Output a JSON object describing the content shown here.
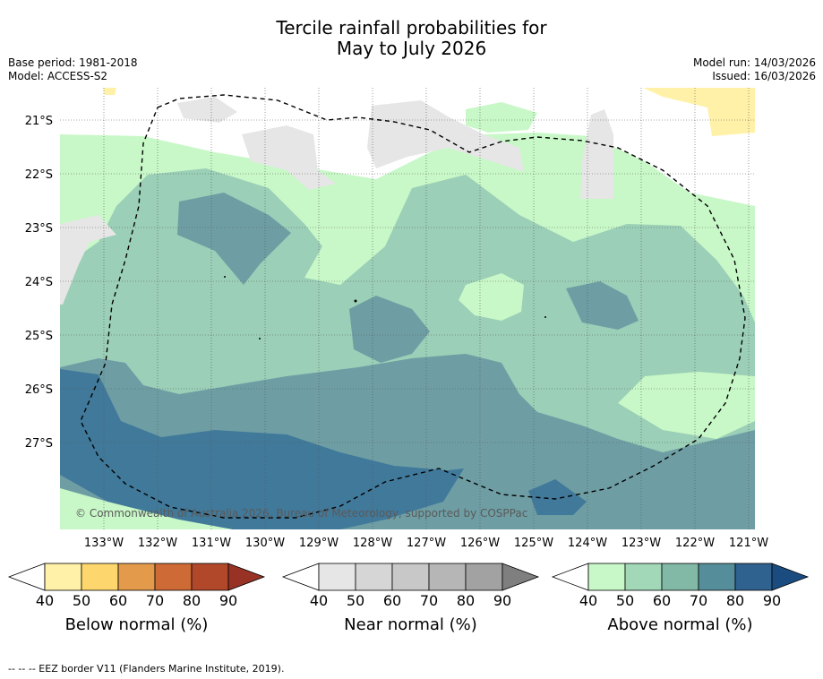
{
  "title_line1": "Tercile rainfall probabilities for",
  "title_line2": "May to July 2026",
  "base_period": "Base period: 1981-2018",
  "model": "Model: ACCESS-S2",
  "model_run": "Model run: 14/03/2026",
  "issued": "Issued: 16/03/2026",
  "lat_labels": [
    "21°S",
    "22°S",
    "23°S",
    "24°S",
    "25°S",
    "26°S",
    "27°S"
  ],
  "lon_labels": [
    "133°W",
    "132°W",
    "131°W",
    "130°W",
    "129°W",
    "128°W",
    "127°W",
    "126°W",
    "125°W",
    "124°W",
    "123°W",
    "122°W",
    "121°W"
  ],
  "copyright": "© Commonwealth of Australia 2026, Bureau of Meteorology, supported by COSPPac",
  "colorbars": [
    {
      "label": "Below normal (%)",
      "ticks": [
        "40",
        "50",
        "60",
        "70",
        "80",
        "90"
      ],
      "colors": [
        "#fff1a8",
        "#fdd66e",
        "#e39b4b",
        "#ce6a35",
        "#b1482a",
        "#973224"
      ]
    },
    {
      "label": "Near normal (%)",
      "ticks": [
        "40",
        "50",
        "60",
        "70",
        "80",
        "90"
      ],
      "colors": [
        "#e6e6e6",
        "#d6d6d6",
        "#c8c8c8",
        "#b6b6b6",
        "#a2a2a2",
        "#7f7f7f"
      ]
    },
    {
      "label": "Above normal (%)",
      "ticks": [
        "40",
        "50",
        "60",
        "70",
        "80",
        "90"
      ],
      "colors": [
        "#c8f8c7",
        "#a2d7b8",
        "#82b8a6",
        "#558e9a",
        "#2f628f",
        "#1a4c80"
      ]
    }
  ],
  "footnote": "--  --  -- EEZ border V11 (Flanders Marine Institute, 2019).",
  "map_colors": {
    "above40": "#c8f8c7",
    "above50": "#9bcfb7",
    "above60": "#6e9ea4",
    "above70": "#41799a",
    "near40": "#e6e6e6",
    "below40": "#fff1a8"
  }
}
